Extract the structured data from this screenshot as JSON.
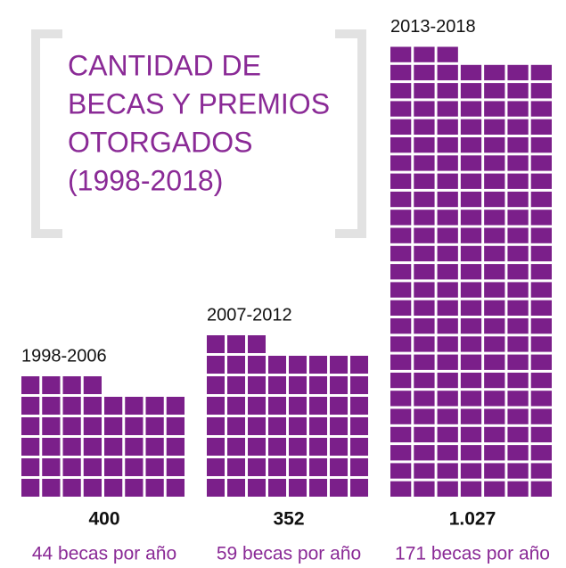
{
  "chart_data": {
    "type": "waffle",
    "title_lines": [
      "CANTIDAD DE",
      "BECAS Y PREMIOS",
      "OTORGADOS",
      "(1998-2018)"
    ],
    "categories": [
      "1998-2006",
      "2007-2012",
      "2013-2018"
    ],
    "values": [
      400,
      352,
      1027
    ],
    "value_labels": [
      "400",
      "352",
      "1.027"
    ],
    "per_year": [
      44,
      59,
      171
    ],
    "per_year_labels": [
      "44 becas por año",
      "59 becas por año",
      "171 becas por año"
    ],
    "color": "#7b1f8a"
  }
}
